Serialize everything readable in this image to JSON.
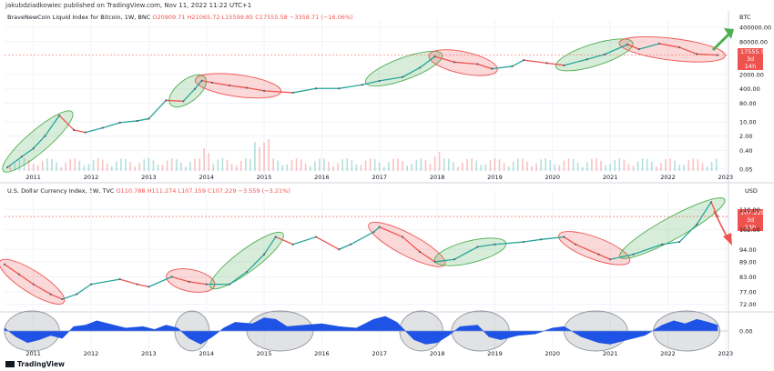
{
  "header": {
    "publisher_line": "jakubdziadkowiec published on TradingView.com, Nov 11, 2022 11:22 UTC+1"
  },
  "brand": {
    "name": "TradingView"
  },
  "colors": {
    "up": "#26a69a",
    "down": "#ef5350",
    "green_fill": "rgba(76,175,80,0.22)",
    "red_fill": "rgba(239,83,80,0.22)",
    "osc": "#1e53e5",
    "arrow_green": "#4caf50",
    "arrow_red": "#ef5350"
  },
  "chart_data": [
    {
      "type": "line",
      "title": "BraveNewCoin Liquid Index for Bitcoin, 1W, BNC",
      "ohlc": {
        "open": "O20909.71",
        "high": "H21065.72",
        "low": "L15599.85",
        "close": "C17555.58",
        "change": "−3358.71 (−16.06%)"
      },
      "unit": "BTC",
      "scale": "log",
      "y_ticks": [
        "400000.00",
        "80000.00",
        "2000.00",
        "400.00",
        "80.00",
        "10.00",
        "2.00",
        "0.40",
        "0.05"
      ],
      "price_tag": {
        "value": "17555.58",
        "countdown": "3d 14h"
      },
      "x_ticks": [
        "2011",
        "2012",
        "2013",
        "2014",
        "2015",
        "2016",
        "2017",
        "2018",
        "2019",
        "2020",
        "2021",
        "2022",
        "2023"
      ],
      "series": [
        {
          "x": [
            2010.55,
            2010.8,
            2011.0,
            2011.2,
            2011.45,
            2011.7,
            2011.9,
            2012.2,
            2012.5,
            2012.8,
            2013.0,
            2013.3,
            2013.6,
            2013.8,
            2013.92,
            2014.1,
            2014.4,
            2014.7,
            2015.0,
            2015.5,
            2015.9,
            2016.3,
            2016.7,
            2017.0,
            2017.4,
            2017.7,
            2017.96,
            2018.3,
            2018.7,
            2018.95,
            2019.3,
            2019.5,
            2019.9,
            2020.2,
            2020.6,
            2020.9,
            2021.3,
            2021.5,
            2021.85,
            2022.2,
            2022.5,
            2022.86
          ],
          "values": [
            0.06,
            0.2,
            0.5,
            2,
            20,
            4,
            3,
            5,
            9,
            11,
            14,
            110,
            100,
            400,
            1000,
            800,
            580,
            450,
            320,
            260,
            420,
            420,
            630,
            980,
            1500,
            4300,
            15000,
            8000,
            6400,
            3800,
            5000,
            10000,
            7200,
            5600,
            11000,
            19000,
            58000,
            34000,
            64000,
            42000,
            20000,
            17555.58
          ]
        }
      ],
      "highlight_regions": [
        {
          "color": "green",
          "x": [
            2010.55,
            2011.6
          ]
        },
        {
          "color": "green",
          "x": [
            2013.45,
            2013.9
          ]
        },
        {
          "color": "red",
          "x": [
            2013.9,
            2015.2
          ]
        },
        {
          "color": "green",
          "x": [
            2016.85,
            2018.0
          ]
        },
        {
          "color": "red",
          "x": [
            2017.95,
            2018.95
          ]
        },
        {
          "color": "green",
          "x": [
            2020.15,
            2021.3
          ]
        },
        {
          "color": "red",
          "x": [
            2021.25,
            2022.9
          ]
        }
      ],
      "arrow": "up"
    },
    {
      "type": "line",
      "title": "U.S. Dollar Currency Index, 1W, TVC",
      "ohlc": {
        "open": "O110.788",
        "high": "H111.274",
        "low": "L107.159",
        "close": "C107.229",
        "change": "−3.559 (−3.21%)"
      },
      "unit": "USD",
      "y_ticks": [
        "110.00",
        "102.00",
        "94.00",
        "89.00",
        "83.00",
        "77.00",
        "72.00"
      ],
      "price_tag": {
        "value": "107.229",
        "countdown": "3d 13h"
      },
      "x_ticks": [
        "2011",
        "2012",
        "2013",
        "2014",
        "2015",
        "2016",
        "2017",
        "2018",
        "2019",
        "2020",
        "2021",
        "2022",
        "2023"
      ],
      "series": [
        {
          "x": [
            2010.5,
            2010.75,
            2011.0,
            2011.3,
            2011.5,
            2011.75,
            2012.0,
            2012.5,
            2012.8,
            2013.0,
            2013.4,
            2013.7,
            2014.0,
            2014.4,
            2014.7,
            2015.0,
            2015.2,
            2015.5,
            2015.9,
            2016.3,
            2016.5,
            2016.9,
            2017.0,
            2017.4,
            2017.7,
            2017.96,
            2018.3,
            2018.7,
            2019.0,
            2019.5,
            2019.8,
            2020.2,
            2020.4,
            2020.8,
            2021.0,
            2021.4,
            2021.9,
            2022.2,
            2022.5,
            2022.75,
            2022.86
          ],
          "values": [
            88,
            84,
            80,
            76,
            74,
            76,
            80,
            82,
            80,
            79,
            83,
            81,
            80,
            80,
            85,
            92,
            99,
            96,
            99,
            94,
            96,
            101,
            103,
            99,
            93,
            89,
            90,
            95,
            96,
            97,
            98,
            99,
            96,
            92,
            90,
            92,
            96,
            97,
            104,
            113,
            107.229
          ]
        }
      ],
      "highlight_regions": [
        {
          "color": "red",
          "x": [
            2010.5,
            2011.45
          ]
        },
        {
          "color": "red",
          "x": [
            2013.4,
            2014.05
          ]
        },
        {
          "color": "green",
          "x": [
            2014.15,
            2015.25
          ]
        },
        {
          "color": "red",
          "x": [
            2016.9,
            2018.05
          ]
        },
        {
          "color": "green",
          "x": [
            2018.05,
            2019.1
          ]
        },
        {
          "color": "red",
          "x": [
            2020.2,
            2021.25
          ]
        },
        {
          "color": "green",
          "x": [
            2021.25,
            2022.9
          ]
        }
      ],
      "arrow": "down"
    },
    {
      "type": "area",
      "y_ticks": [
        "0.00"
      ],
      "x_ticks": [
        "2011",
        "2012",
        "2013",
        "2014",
        "2015",
        "2016",
        "2017",
        "2018",
        "2019",
        "2020",
        "2021",
        "2022",
        "2023"
      ],
      "series": [
        {
          "x": [
            2010.5,
            2010.7,
            2010.9,
            2011.1,
            2011.3,
            2011.5,
            2011.7,
            2011.9,
            2012.1,
            2012.3,
            2012.6,
            2012.9,
            2013.1,
            2013.3,
            2013.5,
            2013.7,
            2013.9,
            2014.1,
            2014.3,
            2014.5,
            2014.8,
            2015.0,
            2015.2,
            2015.4,
            2015.7,
            2016.0,
            2016.3,
            2016.6,
            2016.9,
            2017.1,
            2017.3,
            2017.6,
            2017.8,
            2018.0,
            2018.2,
            2018.4,
            2018.7,
            2018.9,
            2019.1,
            2019.4,
            2019.7,
            2020.0,
            2020.2,
            2020.5,
            2020.8,
            2021.0,
            2021.3,
            2021.6,
            2021.9,
            2022.1,
            2022.3,
            2022.5,
            2022.7,
            2022.86
          ],
          "values": [
            0.2,
            -0.4,
            -0.8,
            -0.6,
            -0.3,
            -0.5,
            0.3,
            0.4,
            0.7,
            0.5,
            0.2,
            0.3,
            0.1,
            0.4,
            0.2,
            -0.5,
            -0.9,
            -0.4,
            0.2,
            0.6,
            0.5,
            0.9,
            0.8,
            0.3,
            0.4,
            0.5,
            0.3,
            0.2,
            0.8,
            1.0,
            0.6,
            -0.6,
            -0.9,
            -0.8,
            -0.3,
            0.3,
            0.4,
            -0.4,
            -0.6,
            -0.3,
            -0.2,
            0.2,
            0.3,
            -0.4,
            -0.8,
            -0.9,
            -0.6,
            -0.3,
            0.4,
            0.7,
            0.5,
            0.8,
            0.6,
            0.4
          ]
        }
      ],
      "highlight_regions": [
        {
          "color": "gray",
          "x": [
            2010.5,
            2011.45
          ]
        },
        {
          "color": "gray",
          "x": [
            2013.45,
            2014.05
          ]
        },
        {
          "color": "gray",
          "x": [
            2014.7,
            2015.85
          ]
        },
        {
          "color": "gray",
          "x": [
            2017.35,
            2018.1
          ]
        },
        {
          "color": "gray",
          "x": [
            2018.25,
            2019.25
          ]
        },
        {
          "color": "gray",
          "x": [
            2020.2,
            2021.3
          ]
        },
        {
          "color": "gray",
          "x": [
            2021.75,
            2022.9
          ]
        }
      ]
    }
  ]
}
